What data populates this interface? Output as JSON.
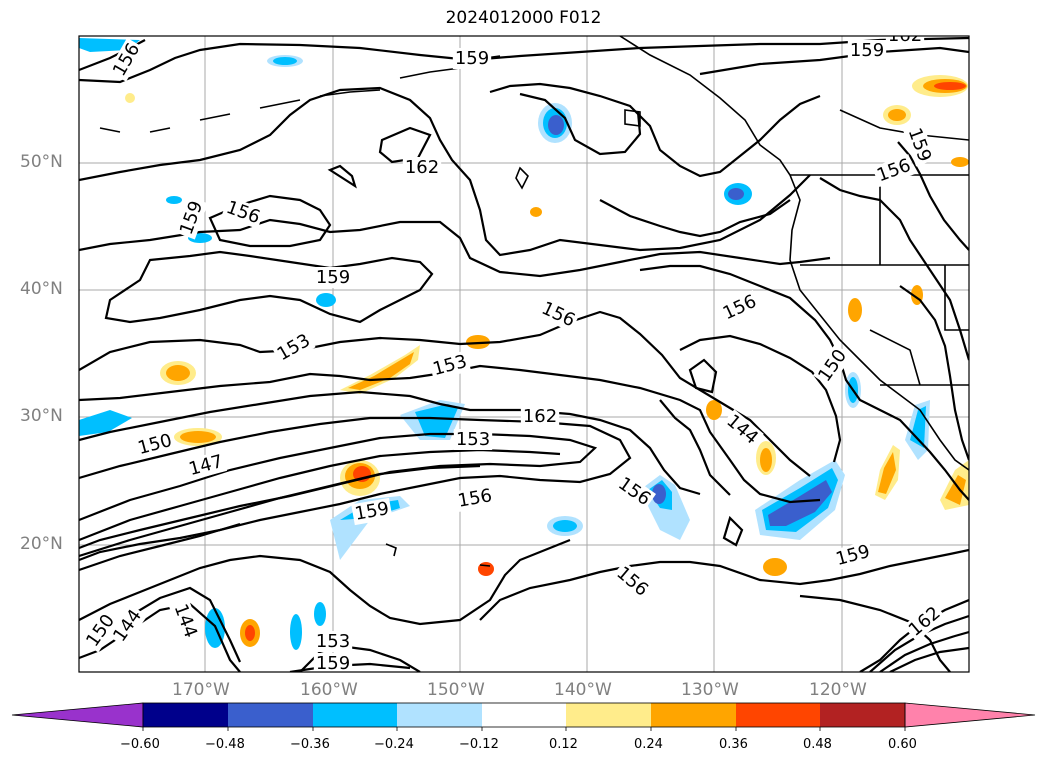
{
  "title": "2024012000 F012",
  "lat_labels": [
    "50°N",
    "40°N",
    "30°N",
    "20°N"
  ],
  "lon_labels": [
    "170°W",
    "160°W",
    "150°W",
    "140°W",
    "130°W",
    "120°W"
  ],
  "contour_labels": [
    "156",
    "159",
    "162",
    "159",
    "159",
    "162",
    "156",
    "159",
    "159",
    "156",
    "156",
    "153",
    "153",
    "150",
    "162",
    "153",
    "147",
    "156",
    "156",
    "156",
    "150",
    "144",
    "159",
    "156",
    "159",
    "144",
    "144",
    "150",
    "153",
    "159",
    "162"
  ],
  "colorbar": {
    "tick_labels": [
      "−0.60",
      "−0.48",
      "−0.36",
      "−0.24",
      "−0.12",
      "0.12",
      "0.24",
      "0.36",
      "0.48",
      "0.60"
    ],
    "colors": [
      "#9932cc",
      "#00008b",
      "#3a5fcd",
      "#00bfff",
      "#b0e2ff",
      "#ffffff",
      "#ffec8b",
      "#ffa500",
      "#ff4500",
      "#b22222",
      "#ff82ab"
    ]
  },
  "colors": {
    "contour": "#000000",
    "grid": "#a0a0a0",
    "coast": "#000000",
    "axis_label": "#808080"
  }
}
